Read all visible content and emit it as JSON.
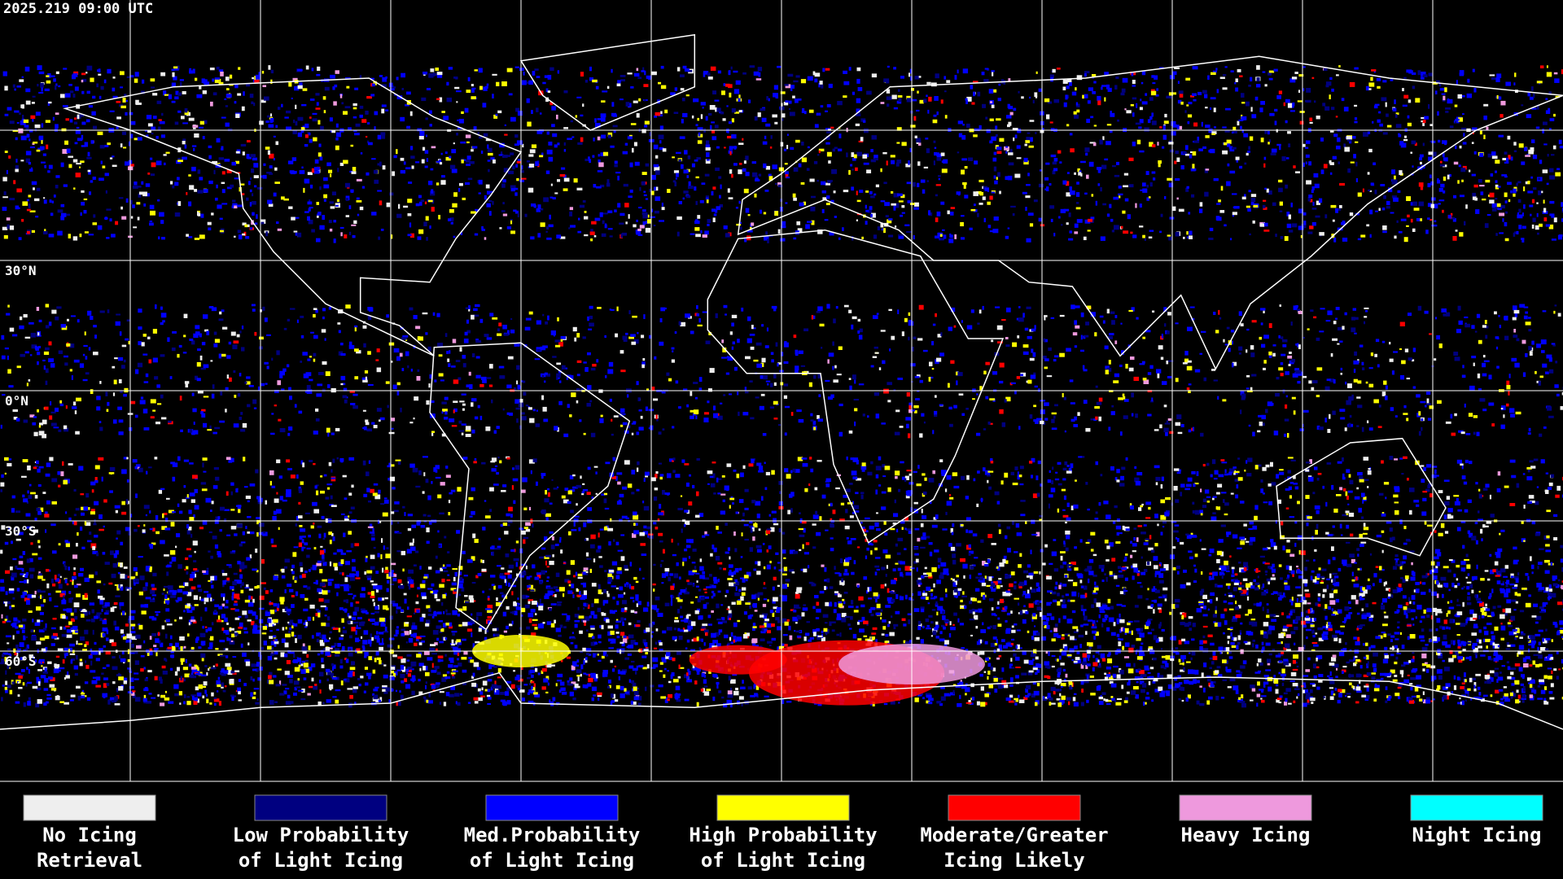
{
  "header": {
    "timestamp": "2025.219 09:00 UTC"
  },
  "map": {
    "lat_labels": [
      "30°N",
      "0°N",
      "30°S",
      "60°S"
    ]
  },
  "legend": {
    "items": [
      {
        "color": "#eeeeee",
        "lines": [
          "No Icing",
          "Retrieval"
        ]
      },
      {
        "color": "#000080",
        "lines": [
          "Low Probability",
          "of Light Icing"
        ]
      },
      {
        "color": "#0000ff",
        "lines": [
          "Med.Probability",
          "of Light Icing"
        ]
      },
      {
        "color": "#ffff00",
        "lines": [
          "High Probability",
          "of Light Icing"
        ]
      },
      {
        "color": "#ff0000",
        "lines": [
          "Moderate/Greater",
          "Icing Likely"
        ]
      },
      {
        "color": "#ee99dd",
        "lines": [
          "Heavy Icing"
        ]
      },
      {
        "color": "#00ffff",
        "lines": [
          "Night Icing"
        ]
      }
    ]
  }
}
